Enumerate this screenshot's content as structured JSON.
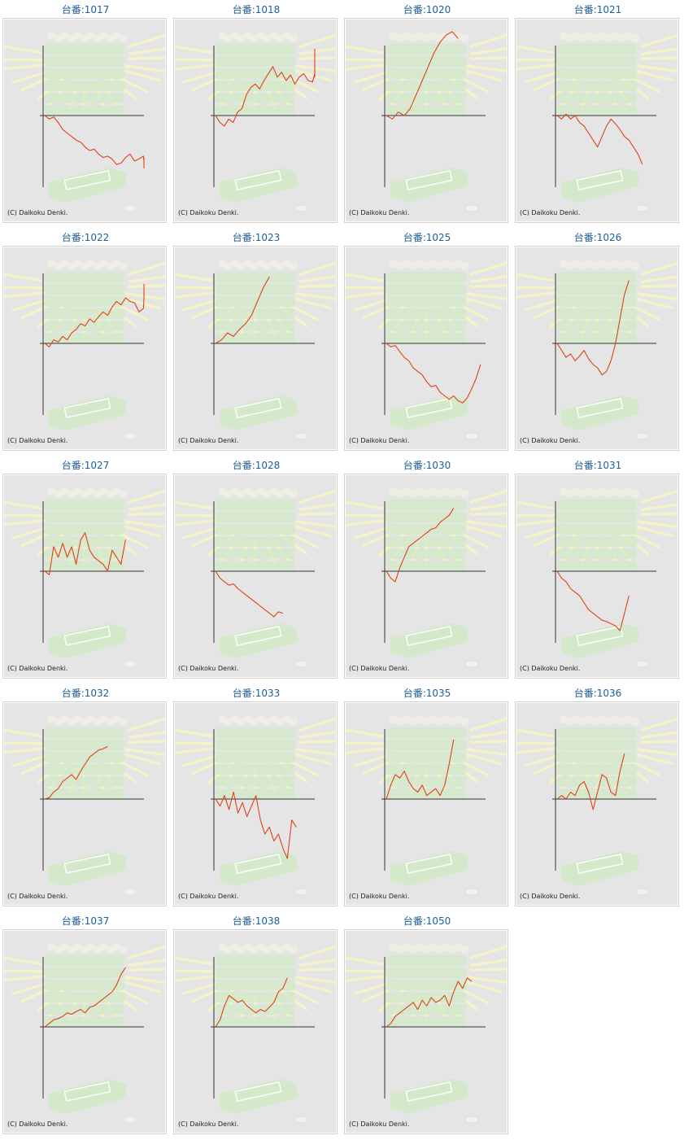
{
  "colors": {
    "panel_bg": "#e5e5e5",
    "line": "#e0401a",
    "axis": "#333333",
    "title": "#1f5f9a",
    "decor_rays": "#f6f6c4",
    "decor_machine": "#cfe9c2"
  },
  "copyright": "(C) Daikoku Denki.",
  "machines": [
    {
      "title": "台番:1017",
      "values": [
        0,
        -0.05,
        -0.02,
        -0.1,
        -0.2,
        -0.25,
        -0.3,
        -0.35,
        -0.38,
        -0.45,
        -0.5,
        -0.48,
        -0.55,
        -0.6,
        -0.58,
        -0.62,
        -0.7,
        -0.68,
        -0.6,
        -0.55,
        -0.65,
        -0.62,
        -0.58,
        -0.66,
        -0.75,
        -0.68,
        -0.6
      ]
    },
    {
      "title": "台番:1018",
      "values": [
        0,
        -0.1,
        -0.15,
        -0.05,
        -0.1,
        0.05,
        0.1,
        0.3,
        0.4,
        0.45,
        0.38,
        0.5,
        0.6,
        0.7,
        0.55,
        0.62,
        0.5,
        0.58,
        0.45,
        0.55,
        0.6,
        0.5,
        0.48,
        0.6,
        0.55,
        0.7,
        0.85,
        0.95
      ]
    },
    {
      "title": "台番:1020",
      "values": [
        0,
        -0.05,
        0.05,
        0,
        0.1,
        0.3,
        0.5,
        0.7,
        0.9,
        1.05,
        1.15,
        1.2,
        1.1
      ]
    },
    {
      "title": "台番:1021",
      "values": [
        0,
        -0.05,
        0.02,
        -0.05,
        0,
        -0.1,
        -0.15,
        -0.25,
        -0.35,
        -0.45,
        -0.3,
        -0.15,
        -0.05,
        -0.12,
        -0.2,
        -0.3,
        -0.35,
        -0.45,
        -0.55,
        -0.7
      ]
    },
    {
      "title": "台番:1022",
      "values": [
        0,
        -0.05,
        0.05,
        0.02,
        0.1,
        0.05,
        0.15,
        0.2,
        0.28,
        0.25,
        0.35,
        0.3,
        0.38,
        0.45,
        0.4,
        0.52,
        0.6,
        0.55,
        0.65,
        0.6,
        0.58,
        0.45,
        0.5,
        0.65,
        0.85
      ]
    },
    {
      "title": "台番:1023",
      "values": [
        0,
        0.05,
        0.15,
        0.1,
        0.2,
        0.28,
        0.4,
        0.6,
        0.8,
        0.95
      ]
    },
    {
      "title": "台番:1025",
      "values": [
        0,
        -0.05,
        -0.03,
        -0.12,
        -0.2,
        -0.25,
        -0.35,
        -0.4,
        -0.45,
        -0.55,
        -0.62,
        -0.6,
        -0.7,
        -0.75,
        -0.8,
        -0.75,
        -0.82,
        -0.85,
        -0.78,
        -0.65,
        -0.5,
        -0.3
      ]
    },
    {
      "title": "台番:1026",
      "values": [
        0,
        -0.1,
        -0.2,
        -0.15,
        -0.25,
        -0.18,
        -0.1,
        -0.22,
        -0.3,
        -0.35,
        -0.45,
        -0.4,
        -0.25,
        0,
        0.35,
        0.7,
        0.9
      ]
    },
    {
      "title": "台番:1027",
      "values": [
        0,
        -0.05,
        0.35,
        0.2,
        0.4,
        0.2,
        0.35,
        0.1,
        0.45,
        0.55,
        0.3,
        0.2,
        0.15,
        0.1,
        0,
        0.3,
        0.2,
        0.1,
        0.45
      ]
    },
    {
      "title": "台番:1028",
      "values": [
        0,
        -0.1,
        -0.15,
        -0.2,
        -0.18,
        -0.25,
        -0.3,
        -0.35,
        -0.4,
        -0.45,
        -0.5,
        -0.55,
        -0.6,
        -0.65,
        -0.58,
        -0.6
      ]
    },
    {
      "title": "台番:1030",
      "values": [
        0,
        -0.1,
        -0.15,
        0.05,
        0.2,
        0.35,
        0.4,
        0.45,
        0.5,
        0.55,
        0.6,
        0.62,
        0.7,
        0.75,
        0.8,
        0.9
      ]
    },
    {
      "title": "台番:1031",
      "values": [
        0,
        -0.1,
        -0.15,
        -0.25,
        -0.3,
        -0.35,
        -0.45,
        -0.55,
        -0.6,
        -0.65,
        -0.7,
        -0.72,
        -0.75,
        -0.78,
        -0.85,
        -0.6,
        -0.35
      ]
    },
    {
      "title": "台番:1032",
      "values": [
        0,
        0.02,
        0.1,
        0.15,
        0.25,
        0.3,
        0.35,
        0.28,
        0.4,
        0.5,
        0.6,
        0.65,
        0.7,
        0.72,
        0.75
      ]
    },
    {
      "title": "台番:1033",
      "values": [
        0,
        -0.1,
        0.05,
        -0.15,
        0.1,
        -0.2,
        -0.05,
        -0.25,
        -0.1,
        0.05,
        -0.3,
        -0.5,
        -0.4,
        -0.6,
        -0.5,
        -0.7,
        -0.85,
        -0.3,
        -0.4
      ]
    },
    {
      "title": "台番:1035",
      "values": [
        0,
        0.2,
        0.35,
        0.3,
        0.4,
        0.25,
        0.15,
        0.1,
        0.2,
        0.05,
        0.1,
        0.15,
        0.05,
        0.2,
        0.5,
        0.85
      ]
    },
    {
      "title": "台番:1036",
      "values": [
        0,
        0.05,
        0,
        0.1,
        0.05,
        0.2,
        0.25,
        0.1,
        -0.15,
        0.1,
        0.35,
        0.3,
        0.1,
        0.05,
        0.4,
        0.65
      ]
    },
    {
      "title": "台番:1037",
      "values": [
        0,
        0.05,
        0.1,
        0.12,
        0.15,
        0.2,
        0.18,
        0.22,
        0.25,
        0.2,
        0.28,
        0.3,
        0.35,
        0.4,
        0.45,
        0.5,
        0.6,
        0.75,
        0.85
      ]
    },
    {
      "title": "台番:1038",
      "values": [
        0,
        0.1,
        0.3,
        0.45,
        0.4,
        0.35,
        0.38,
        0.3,
        0.25,
        0.2,
        0.25,
        0.22,
        0.28,
        0.35,
        0.5,
        0.55,
        0.7
      ]
    },
    {
      "title": "台番:1050",
      "values": [
        0,
        0.05,
        0.15,
        0.2,
        0.25,
        0.3,
        0.35,
        0.25,
        0.38,
        0.3,
        0.42,
        0.35,
        0.38,
        0.45,
        0.3,
        0.5,
        0.65,
        0.55,
        0.7,
        0.65
      ]
    }
  ]
}
